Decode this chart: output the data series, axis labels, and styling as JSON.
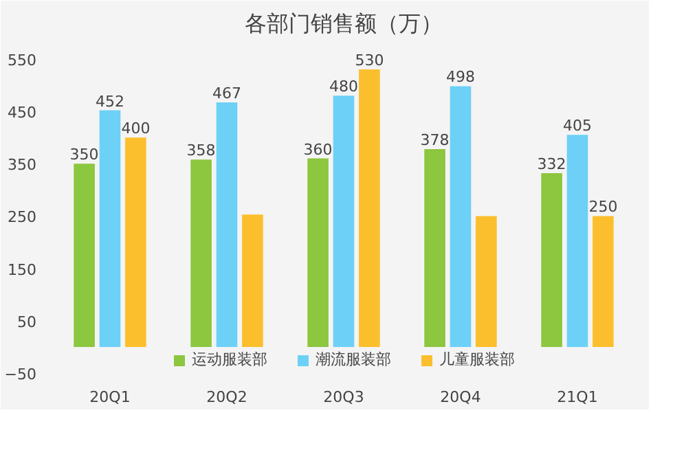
{
  "chart_data": {
    "type": "bar",
    "title": "各部门销售额（万）",
    "categories": [
      "20Q1",
      "20Q2",
      "20Q3",
      "20Q4",
      "21Q1"
    ],
    "series": [
      {
        "name": "运动服装部",
        "color": "#8dc63f",
        "values": [
          350,
          358,
          360,
          378,
          332
        ],
        "value_labels": [
          "350",
          "358",
          "360",
          "378",
          "332"
        ]
      },
      {
        "name": "潮流服装部",
        "color": "#6dd0f7",
        "values": [
          452,
          467,
          480,
          498,
          405
        ],
        "value_labels": [
          "452",
          "467",
          "480",
          "498",
          "405"
        ]
      },
      {
        "name": "儿童服装部",
        "color": "#fbbf2d",
        "values": [
          400,
          253,
          530,
          250,
          250
        ],
        "value_labels": [
          "400",
          null,
          "530",
          null,
          "250"
        ]
      }
    ],
    "ylim": [
      -50,
      580
    ],
    "yticks": [
      -50,
      50,
      150,
      250,
      350,
      450,
      550
    ],
    "grid": false,
    "legend": "bottom"
  }
}
